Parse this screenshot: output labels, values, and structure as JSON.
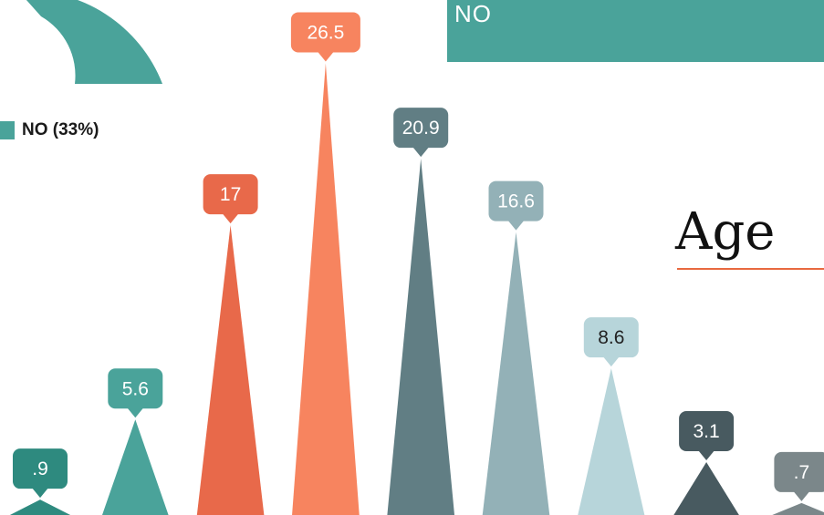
{
  "banner": {
    "label": "NO",
    "color": "#4aa39a"
  },
  "legend": {
    "label": "NO (33%)",
    "color": "#4aa39a"
  },
  "section_title": {
    "text": "Age",
    "underline_color": "#e8693f"
  },
  "pie_fragment": {
    "color": "#4aa39a"
  },
  "chart_data": {
    "type": "bar",
    "title": "Age",
    "xlabel": "",
    "ylabel": "",
    "ylim": [
      0,
      30
    ],
    "categories": [
      "",
      "",
      "",
      "",
      "",
      "",
      "",
      "",
      ""
    ],
    "values": [
      0.9,
      5.6,
      17,
      26.5,
      20.9,
      16.6,
      8.6,
      3.1,
      0.7
    ],
    "value_labels": [
      ".9",
      "5.6",
      "17",
      "26.5",
      "20.9",
      "16.6",
      "8.6",
      "3.1",
      ".7"
    ],
    "colors": [
      "#2e8a7f",
      "#4aa39a",
      "#e8694a",
      "#f7845f",
      "#617e84",
      "#93b1b7",
      "#b7d5da",
      "#485a60",
      "#7b878a"
    ],
    "label_text_colors": [
      "#ffffff",
      "#ffffff",
      "#ffffff",
      "#ffffff",
      "#ffffff",
      "#ffffff",
      "#222222",
      "#ffffff",
      "#ffffff"
    ]
  }
}
